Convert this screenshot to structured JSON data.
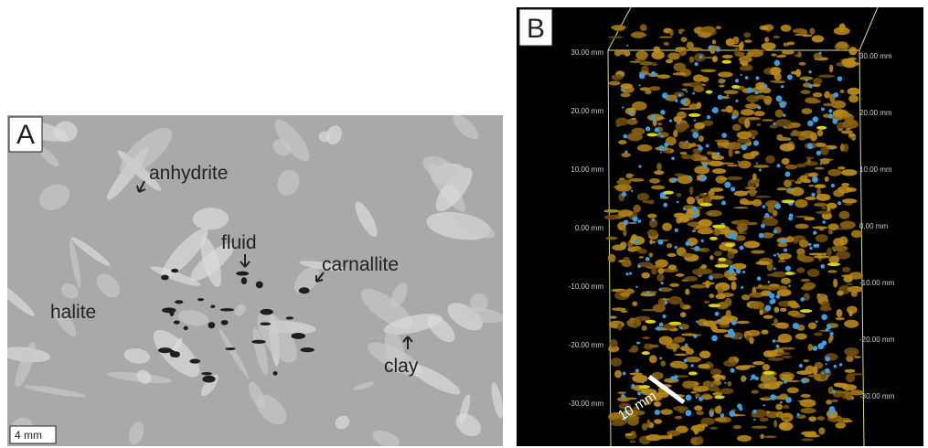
{
  "panel_a": {
    "label": "A",
    "annotations": [
      "anhydrite",
      "fluid",
      "carnallite",
      "halite",
      "clay"
    ],
    "scale_bar": "4 mm"
  },
  "panel_b": {
    "label": "B",
    "scale_bar": "10 mm",
    "left_axis_labels": [
      "30.00 mm",
      "20.00 mm",
      "10.00 mm",
      "0.00 mm",
      "-10.00 mm",
      "-20.00 mm",
      "-30.00 mm"
    ],
    "right_axis_labels": [
      "30.00 mm",
      "20.00 mm",
      "10.00 mm",
      "0.00 mm",
      "-10.00 mm",
      "-20.00 mm",
      "-30.00 mm"
    ]
  }
}
